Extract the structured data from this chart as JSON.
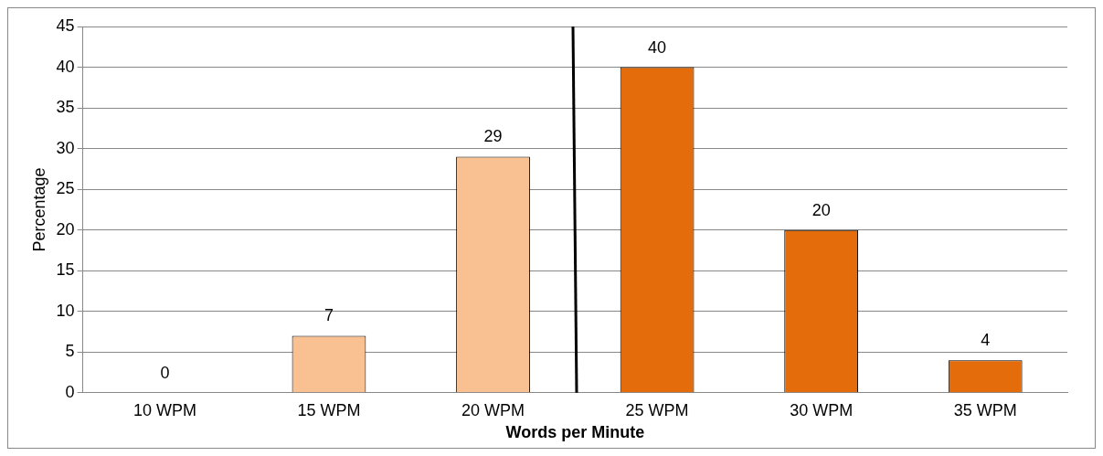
{
  "chart_data": {
    "type": "bar",
    "xlabel": "Words per Minute",
    "ylabel": "Percentage",
    "categories": [
      "10 WPM",
      "15 WPM",
      "20 WPM",
      "25 WPM",
      "30 WPM",
      "35 WPM"
    ],
    "values": [
      0,
      7,
      29,
      40,
      20,
      4
    ],
    "colors": [
      "#f9c092",
      "#f9c092",
      "#f9c092",
      "#e46c0a",
      "#e46c0a",
      "#e46c0a"
    ],
    "ylim": [
      0,
      45
    ],
    "yticks": [
      0,
      5,
      10,
      15,
      20,
      25,
      30,
      35,
      40,
      45
    ],
    "grid": "y",
    "data_labels": true,
    "legend": false
  }
}
